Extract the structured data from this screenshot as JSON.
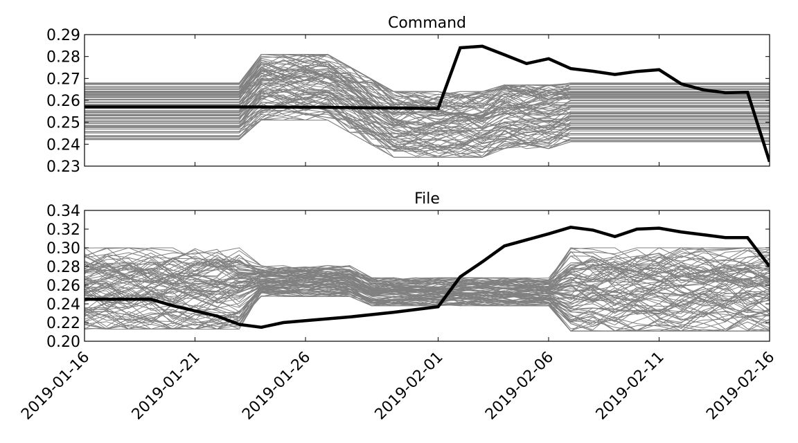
{
  "chart_data": [
    {
      "type": "line",
      "title": "Command",
      "xlabel": "",
      "ylabel": "",
      "ylim": [
        0.23,
        0.29
      ],
      "yticks": [
        "0.23",
        "0.24",
        "0.25",
        "0.26",
        "0.27",
        "0.28",
        "0.29"
      ],
      "xlim": [
        "2019-01-16",
        "2019-02-16"
      ],
      "x_tick_labels_shown": false,
      "background_band": {
        "description_of_series": "many gray lines (ensemble)",
        "color": "#808080",
        "segments": [
          {
            "x": [
              "2019-01-16",
              "2019-01-23"
            ],
            "low": 0.242,
            "high": 0.268
          },
          {
            "x": [
              "2019-01-24",
              "2019-01-27"
            ],
            "low": 0.251,
            "high": 0.281
          },
          {
            "x": [
              "2019-01-30",
              "2019-02-03"
            ],
            "low": 0.234,
            "high": 0.264
          },
          {
            "x": [
              "2019-02-04",
              "2019-02-06"
            ],
            "low": 0.238,
            "high": 0.267
          },
          {
            "x": [
              "2019-02-07",
              "2019-02-16"
            ],
            "low": 0.241,
            "high": 0.268
          }
        ]
      },
      "series": [
        {
          "color": "#000000",
          "x": [
            "2019-01-16",
            "2019-01-20",
            "2019-01-24",
            "2019-01-27",
            "2019-01-30",
            "2019-02-01",
            "2019-02-02",
            "2019-02-03",
            "2019-02-04",
            "2019-02-05",
            "2019-02-06",
            "2019-02-07",
            "2019-02-08",
            "2019-02-09",
            "2019-02-10",
            "2019-02-11",
            "2019-02-12",
            "2019-02-13",
            "2019-02-14",
            "2019-02-15",
            "2019-02-16"
          ],
          "values": [
            0.257,
            0.257,
            0.257,
            0.2568,
            0.2565,
            0.2563,
            0.284,
            0.2847,
            0.2808,
            0.2768,
            0.279,
            0.2745,
            0.2733,
            0.2718,
            0.2732,
            0.274,
            0.2675,
            0.2648,
            0.2635,
            0.2637,
            0.232
          ]
        }
      ]
    },
    {
      "type": "line",
      "title": "File",
      "xlabel": "",
      "ylabel": "",
      "ylim": [
        0.2,
        0.34
      ],
      "yticks": [
        "0.20",
        "0.22",
        "0.24",
        "0.26",
        "0.28",
        "0.30",
        "0.32",
        "0.34"
      ],
      "xlim": [
        "2019-01-16",
        "2019-02-16"
      ],
      "x_tick_labels": [
        "2019-01-16",
        "2019-01-21",
        "2019-01-26",
        "2019-02-01",
        "2019-02-06",
        "2019-02-11",
        "2019-02-16"
      ],
      "background_band": {
        "description_of_series": "many gray lines (ensemble)",
        "color": "#808080",
        "segments": [
          {
            "x": [
              "2019-01-16",
              "2019-01-23"
            ],
            "low": 0.213,
            "high": 0.3
          },
          {
            "x": [
              "2019-01-24",
              "2019-01-28"
            ],
            "low": 0.248,
            "high": 0.281
          },
          {
            "x": [
              "2019-01-29",
              "2019-02-06"
            ],
            "low": 0.238,
            "high": 0.268
          },
          {
            "x": [
              "2019-02-07",
              "2019-02-16"
            ],
            "low": 0.211,
            "high": 0.3
          }
        ]
      },
      "series": [
        {
          "color": "#000000",
          "x": [
            "2019-01-16",
            "2019-01-19",
            "2019-01-20",
            "2019-01-22",
            "2019-01-23",
            "2019-01-24",
            "2019-01-25",
            "2019-01-26",
            "2019-01-28",
            "2019-01-30",
            "2019-02-01",
            "2019-02-02",
            "2019-02-03",
            "2019-02-04",
            "2019-02-06",
            "2019-02-07",
            "2019-02-08",
            "2019-02-09",
            "2019-02-10",
            "2019-02-11",
            "2019-02-12",
            "2019-02-13",
            "2019-02-14",
            "2019-02-15",
            "2019-02-16"
          ],
          "values": [
            0.245,
            0.245,
            0.238,
            0.227,
            0.218,
            0.215,
            0.22,
            0.222,
            0.226,
            0.231,
            0.237,
            0.269,
            0.285,
            0.302,
            0.315,
            0.322,
            0.319,
            0.312,
            0.32,
            0.321,
            0.317,
            0.314,
            0.311,
            0.311,
            0.28
          ]
        }
      ]
    }
  ]
}
